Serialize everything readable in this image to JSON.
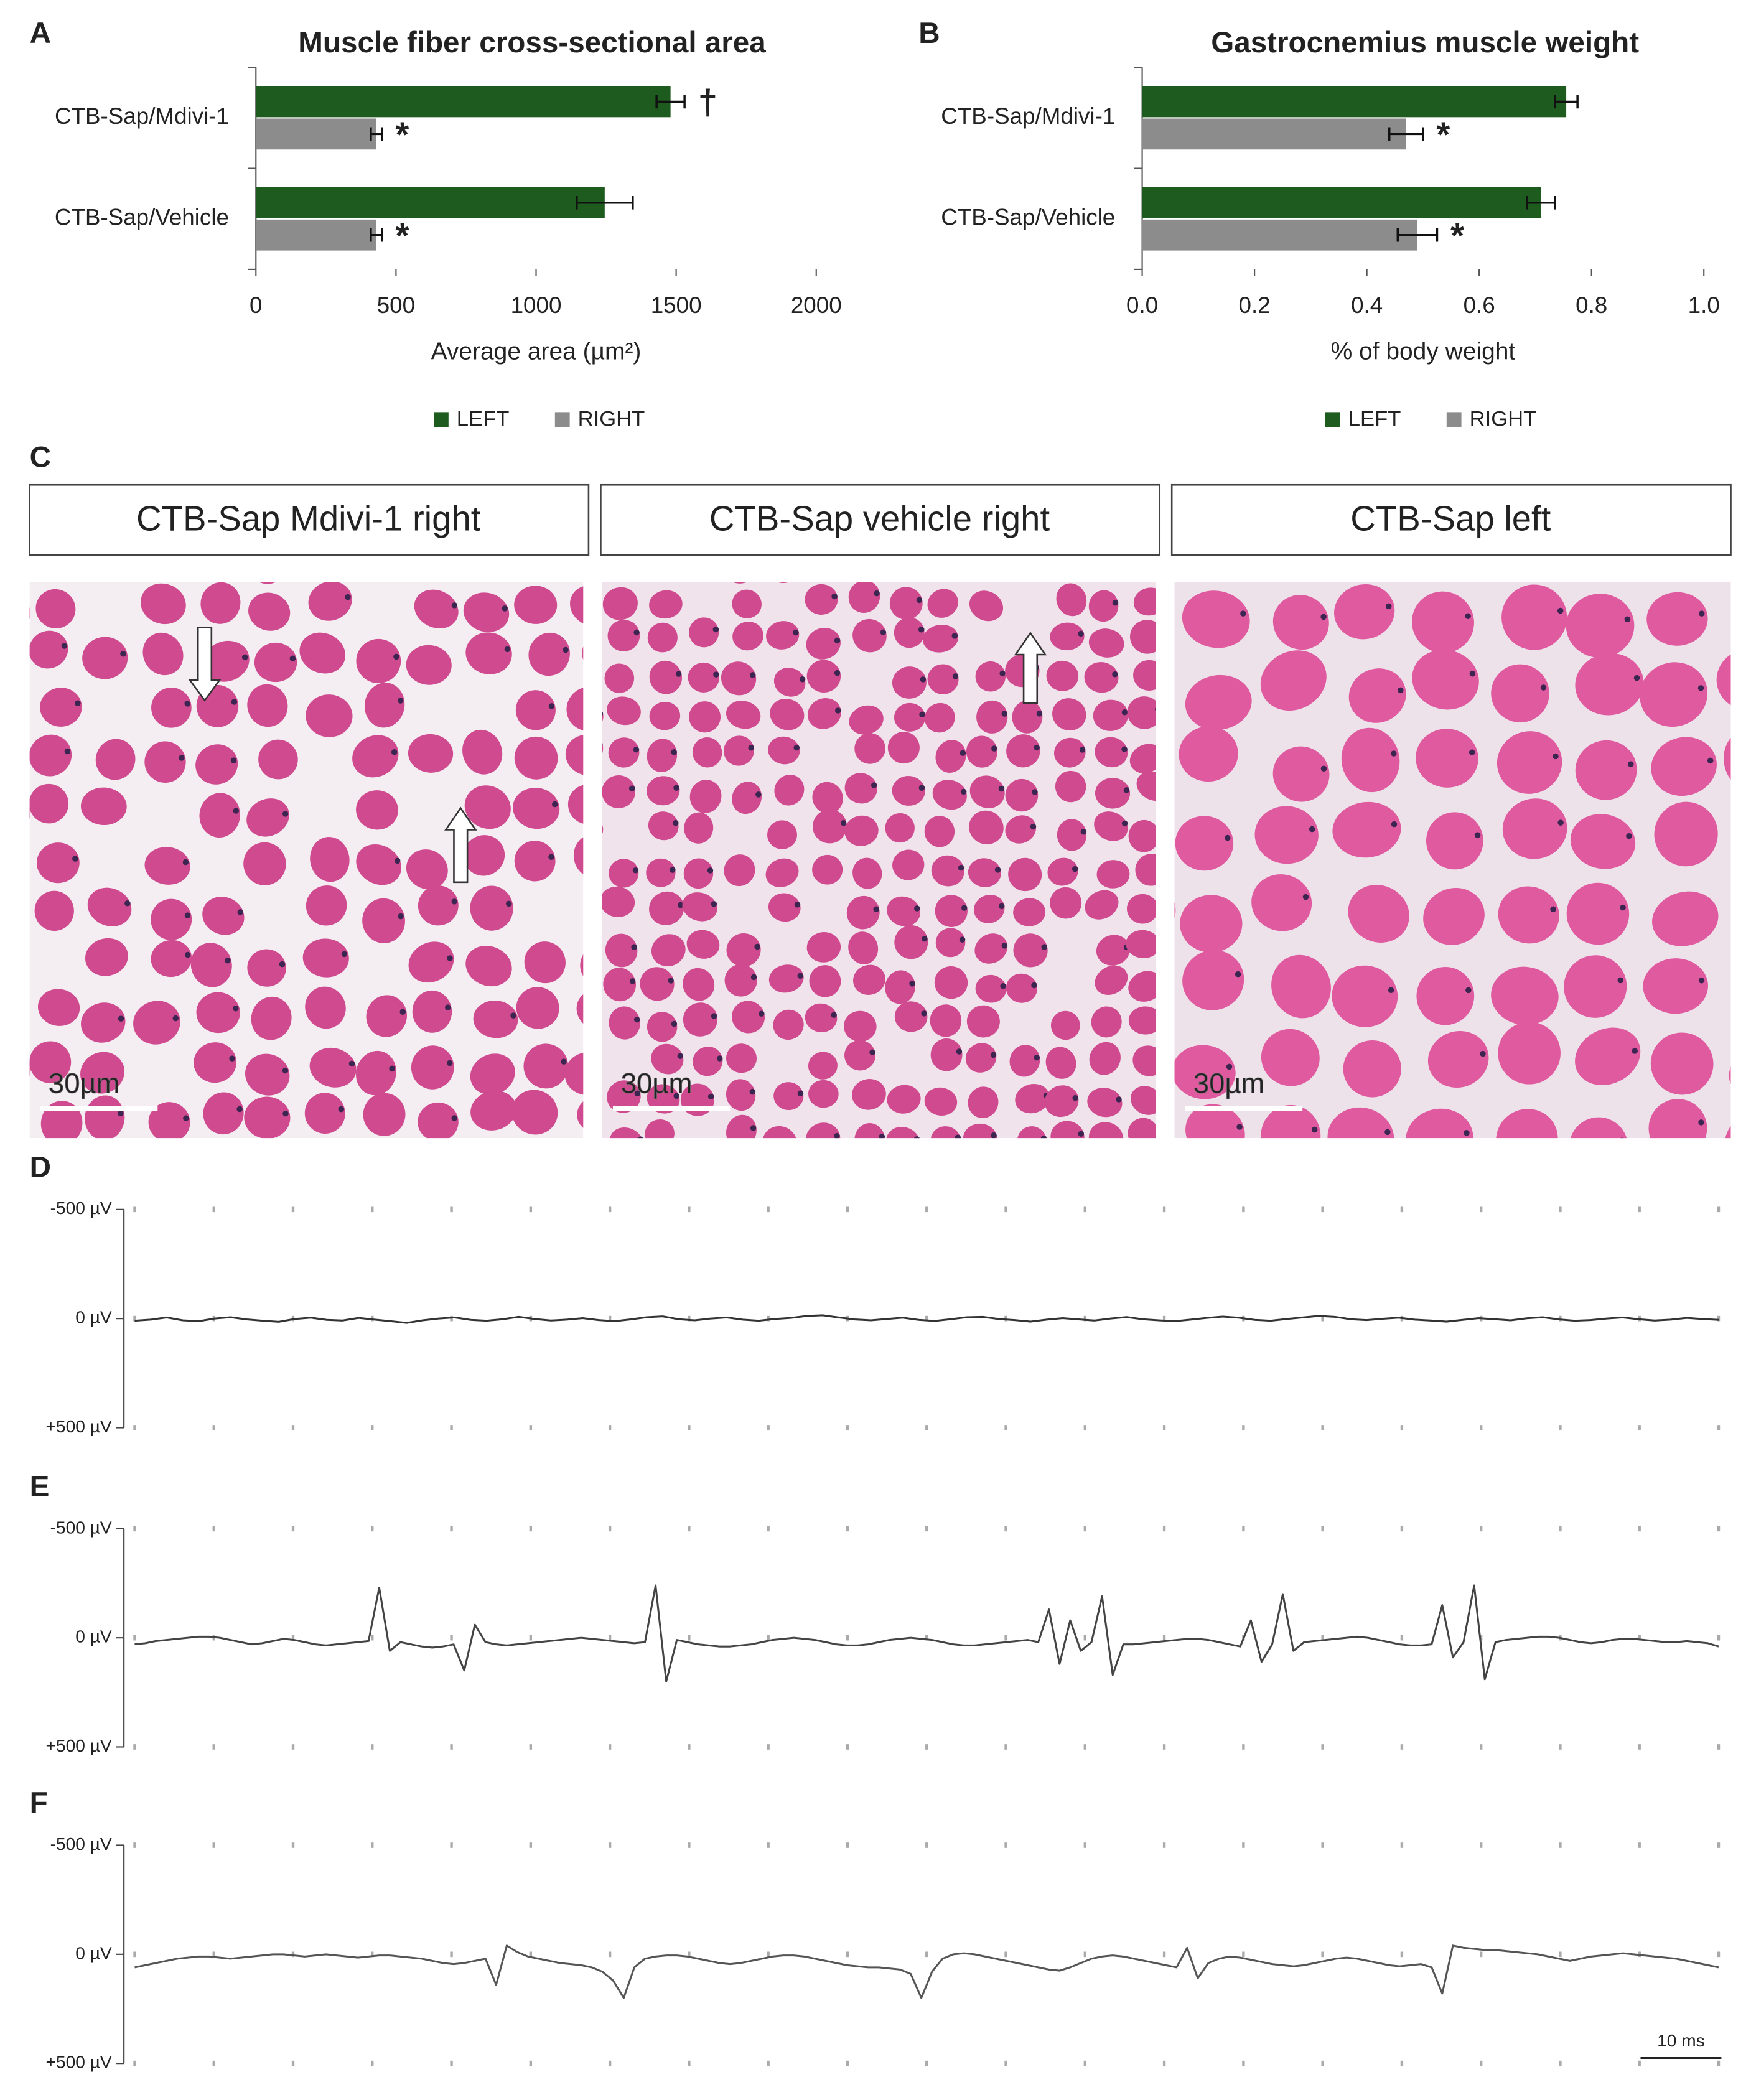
{
  "chart_data": [
    {
      "type": "bar",
      "orientation": "horizontal",
      "panel": "A",
      "title": "Muscle fiber cross-sectional area",
      "categories": [
        "CTB-Sap/Mdivi-1",
        "CTB-Sap/Vehicle"
      ],
      "series": [
        {
          "name": "LEFT",
          "color": "#1e5b1e",
          "values": [
            1480,
            1245
          ],
          "errors": [
            50,
            100
          ],
          "markers": [
            "†",
            null
          ]
        },
        {
          "name": "RIGHT",
          "color": "#8c8c8c",
          "values": [
            430,
            430
          ],
          "errors": [
            20,
            20
          ],
          "markers": [
            "*",
            "*"
          ]
        }
      ],
      "xlabel": "Average area (µm²)",
      "xlim": [
        0,
        2000
      ],
      "xticks": [
        0,
        500,
        1000,
        1500,
        2000
      ],
      "legend": "bottom"
    },
    {
      "type": "bar",
      "orientation": "horizontal",
      "panel": "B",
      "title": "Gastrocnemius muscle weight",
      "categories": [
        "CTB-Sap/Mdivi-1",
        "CTB-Sap/Vehicle"
      ],
      "series": [
        {
          "name": "LEFT",
          "color": "#1e5b1e",
          "values": [
            0.755,
            0.71
          ],
          "errors": [
            0.02,
            0.025
          ]
        },
        {
          "name": "RIGHT",
          "color": "#8c8c8c",
          "values": [
            0.47,
            0.49
          ],
          "errors": [
            0.03,
            0.035
          ],
          "markers": [
            "*",
            "*"
          ]
        }
      ],
      "xlabel": "% of body weight",
      "xlim": [
        0,
        1
      ],
      "xticks": [
        {
          "value": 0,
          "label": "0.0"
        },
        0.2,
        0.4,
        0.6,
        0.8,
        {
          "value": 1,
          "label": "1.0"
        }
      ],
      "legend": "bottom"
    },
    {
      "type": "line",
      "panel": "D",
      "color": "#333333",
      "ylim": [
        500,
        -500
      ],
      "yticks": [
        {
          "value": -500,
          "label": "-500 µV"
        },
        {
          "value": 0,
          "label": "0 µV"
        },
        {
          "value": 500,
          "label": "+500 µV"
        }
      ],
      "values": [
        10,
        5,
        -5,
        8,
        12,
        0,
        -6,
        4,
        10,
        15,
        2,
        -4,
        6,
        9,
        -3,
        5,
        12,
        20,
        8,
        0,
        -5,
        6,
        10,
        3,
        -8,
        2,
        9,
        5,
        -2,
        7,
        12,
        4,
        -6,
        -10,
        3,
        8,
        0,
        -5,
        5,
        10,
        2,
        -3,
        -12,
        -15,
        -5,
        4,
        8,
        2,
        -4,
        6,
        11,
        3,
        -6,
        -8,
        2,
        7,
        14,
        5,
        -2,
        4,
        9,
        0,
        -7,
        3,
        8,
        12,
        5,
        -3,
        -9,
        -4,
        6,
        10,
        2,
        -5,
        -12,
        -8,
        3,
        7,
        1,
        -4,
        5,
        9,
        14,
        6,
        -2,
        3,
        8,
        -1,
        -6,
        4,
        10,
        7,
        0,
        -5,
        3,
        9,
        5,
        -3,
        2,
        6
      ]
    },
    {
      "type": "line",
      "panel": "E",
      "color": "#444444",
      "ylim": [
        500,
        -500
      ],
      "yticks": [
        {
          "value": -500,
          "label": "-500 µV"
        },
        {
          "value": 0,
          "label": "0 µV"
        },
        {
          "value": 500,
          "label": "+500 µV"
        }
      ],
      "values": [
        30,
        25,
        15,
        10,
        5,
        0,
        -5,
        -5,
        0,
        10,
        20,
        30,
        25,
        15,
        5,
        10,
        20,
        30,
        35,
        30,
        25,
        20,
        15,
        -230,
        60,
        20,
        30,
        40,
        45,
        40,
        30,
        150,
        -60,
        20,
        30,
        35,
        30,
        25,
        20,
        15,
        10,
        5,
        0,
        5,
        10,
        15,
        20,
        25,
        20,
        -240,
        200,
        10,
        20,
        30,
        35,
        40,
        40,
        35,
        30,
        20,
        10,
        5,
        0,
        5,
        10,
        20,
        30,
        35,
        35,
        30,
        20,
        10,
        5,
        0,
        5,
        10,
        20,
        30,
        35,
        35,
        30,
        25,
        20,
        15,
        10,
        20,
        -130,
        120,
        -80,
        60,
        20,
        -190,
        170,
        30,
        30,
        25,
        20,
        15,
        10,
        5,
        5,
        10,
        20,
        30,
        40,
        -80,
        110,
        30,
        -200,
        60,
        20,
        15,
        10,
        5,
        0,
        -5,
        0,
        10,
        20,
        30,
        35,
        35,
        30,
        -150,
        90,
        20,
        -240,
        190,
        20,
        10,
        5,
        0,
        -5,
        -5,
        0,
        10,
        20,
        25,
        20,
        10,
        5,
        5,
        10,
        15,
        20,
        20,
        15,
        20,
        25,
        40
      ]
    },
    {
      "type": "line",
      "panel": "F",
      "color": "#555555",
      "ylim": [
        500,
        -500
      ],
      "yticks": [
        {
          "value": -500,
          "label": "-500 µV"
        },
        {
          "value": 0,
          "label": "0 µV"
        },
        {
          "value": 500,
          "label": "+500 µV"
        }
      ],
      "scale_bar": "10 ms",
      "values": [
        60,
        50,
        40,
        30,
        20,
        15,
        10,
        10,
        15,
        20,
        15,
        10,
        5,
        0,
        0,
        5,
        10,
        5,
        0,
        5,
        10,
        15,
        10,
        5,
        5,
        10,
        15,
        20,
        30,
        40,
        45,
        40,
        30,
        20,
        140,
        -40,
        -10,
        10,
        20,
        30,
        40,
        45,
        50,
        60,
        80,
        120,
        200,
        60,
        20,
        10,
        5,
        5,
        10,
        20,
        30,
        40,
        45,
        40,
        30,
        20,
        10,
        5,
        5,
        10,
        20,
        30,
        40,
        50,
        55,
        60,
        60,
        65,
        70,
        90,
        200,
        80,
        20,
        0,
        -5,
        0,
        10,
        20,
        30,
        40,
        50,
        60,
        70,
        75,
        60,
        40,
        20,
        10,
        5,
        10,
        20,
        30,
        40,
        50,
        60,
        -30,
        110,
        40,
        20,
        10,
        15,
        25,
        35,
        45,
        50,
        55,
        50,
        40,
        30,
        20,
        15,
        20,
        30,
        40,
        50,
        55,
        50,
        45,
        60,
        180,
        -40,
        -30,
        -25,
        -20,
        -20,
        -15,
        -10,
        -5,
        0,
        10,
        20,
        30,
        20,
        10,
        5,
        0,
        -5,
        0,
        5,
        10,
        15,
        20,
        30,
        40,
        50,
        60
      ]
    }
  ],
  "panel_c": {
    "panel": "C",
    "headers": [
      "CTB-Sap Mdivi-1 right",
      "CTB-Sap vehicle right",
      "CTB-Sap left"
    ],
    "scale_labels": [
      "30µm",
      "30µm",
      "30µm"
    ]
  }
}
